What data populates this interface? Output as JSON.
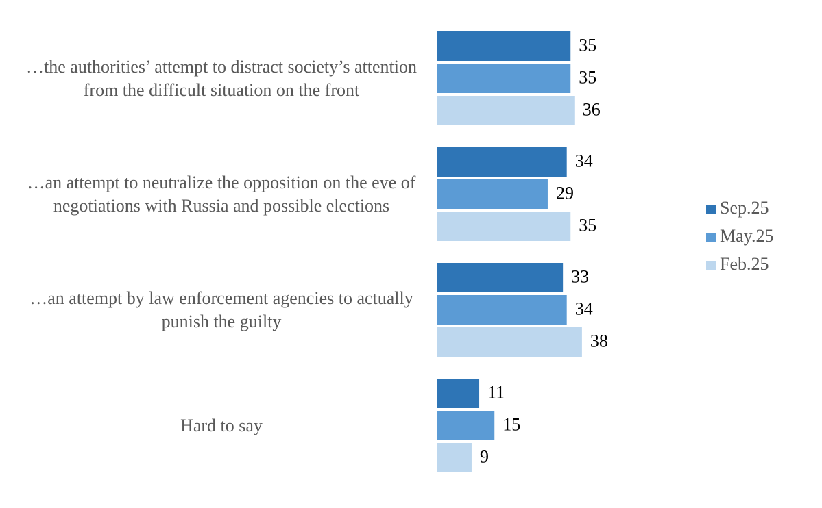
{
  "chart_data": {
    "type": "bar",
    "orientation": "horizontal",
    "categories": [
      "…the authorities’ attempt to distract society’s attention from the difficult situation on the front",
      "…an attempt to neutralize the opposition on the eve of negotiations with Russia and possible elections",
      "…an attempt by law enforcement agencies to actually punish the guilty",
      "Hard to say"
    ],
    "series": [
      {
        "name": "Sep.25",
        "color": "#2e75b6",
        "values": [
          35,
          34,
          33,
          11
        ]
      },
      {
        "name": "May.25",
        "color": "#5b9bd5",
        "values": [
          35,
          29,
          34,
          15
        ]
      },
      {
        "name": "Feb.25",
        "color": "#bdd7ee",
        "values": [
          36,
          35,
          38,
          9
        ]
      }
    ],
    "legend": "right"
  }
}
